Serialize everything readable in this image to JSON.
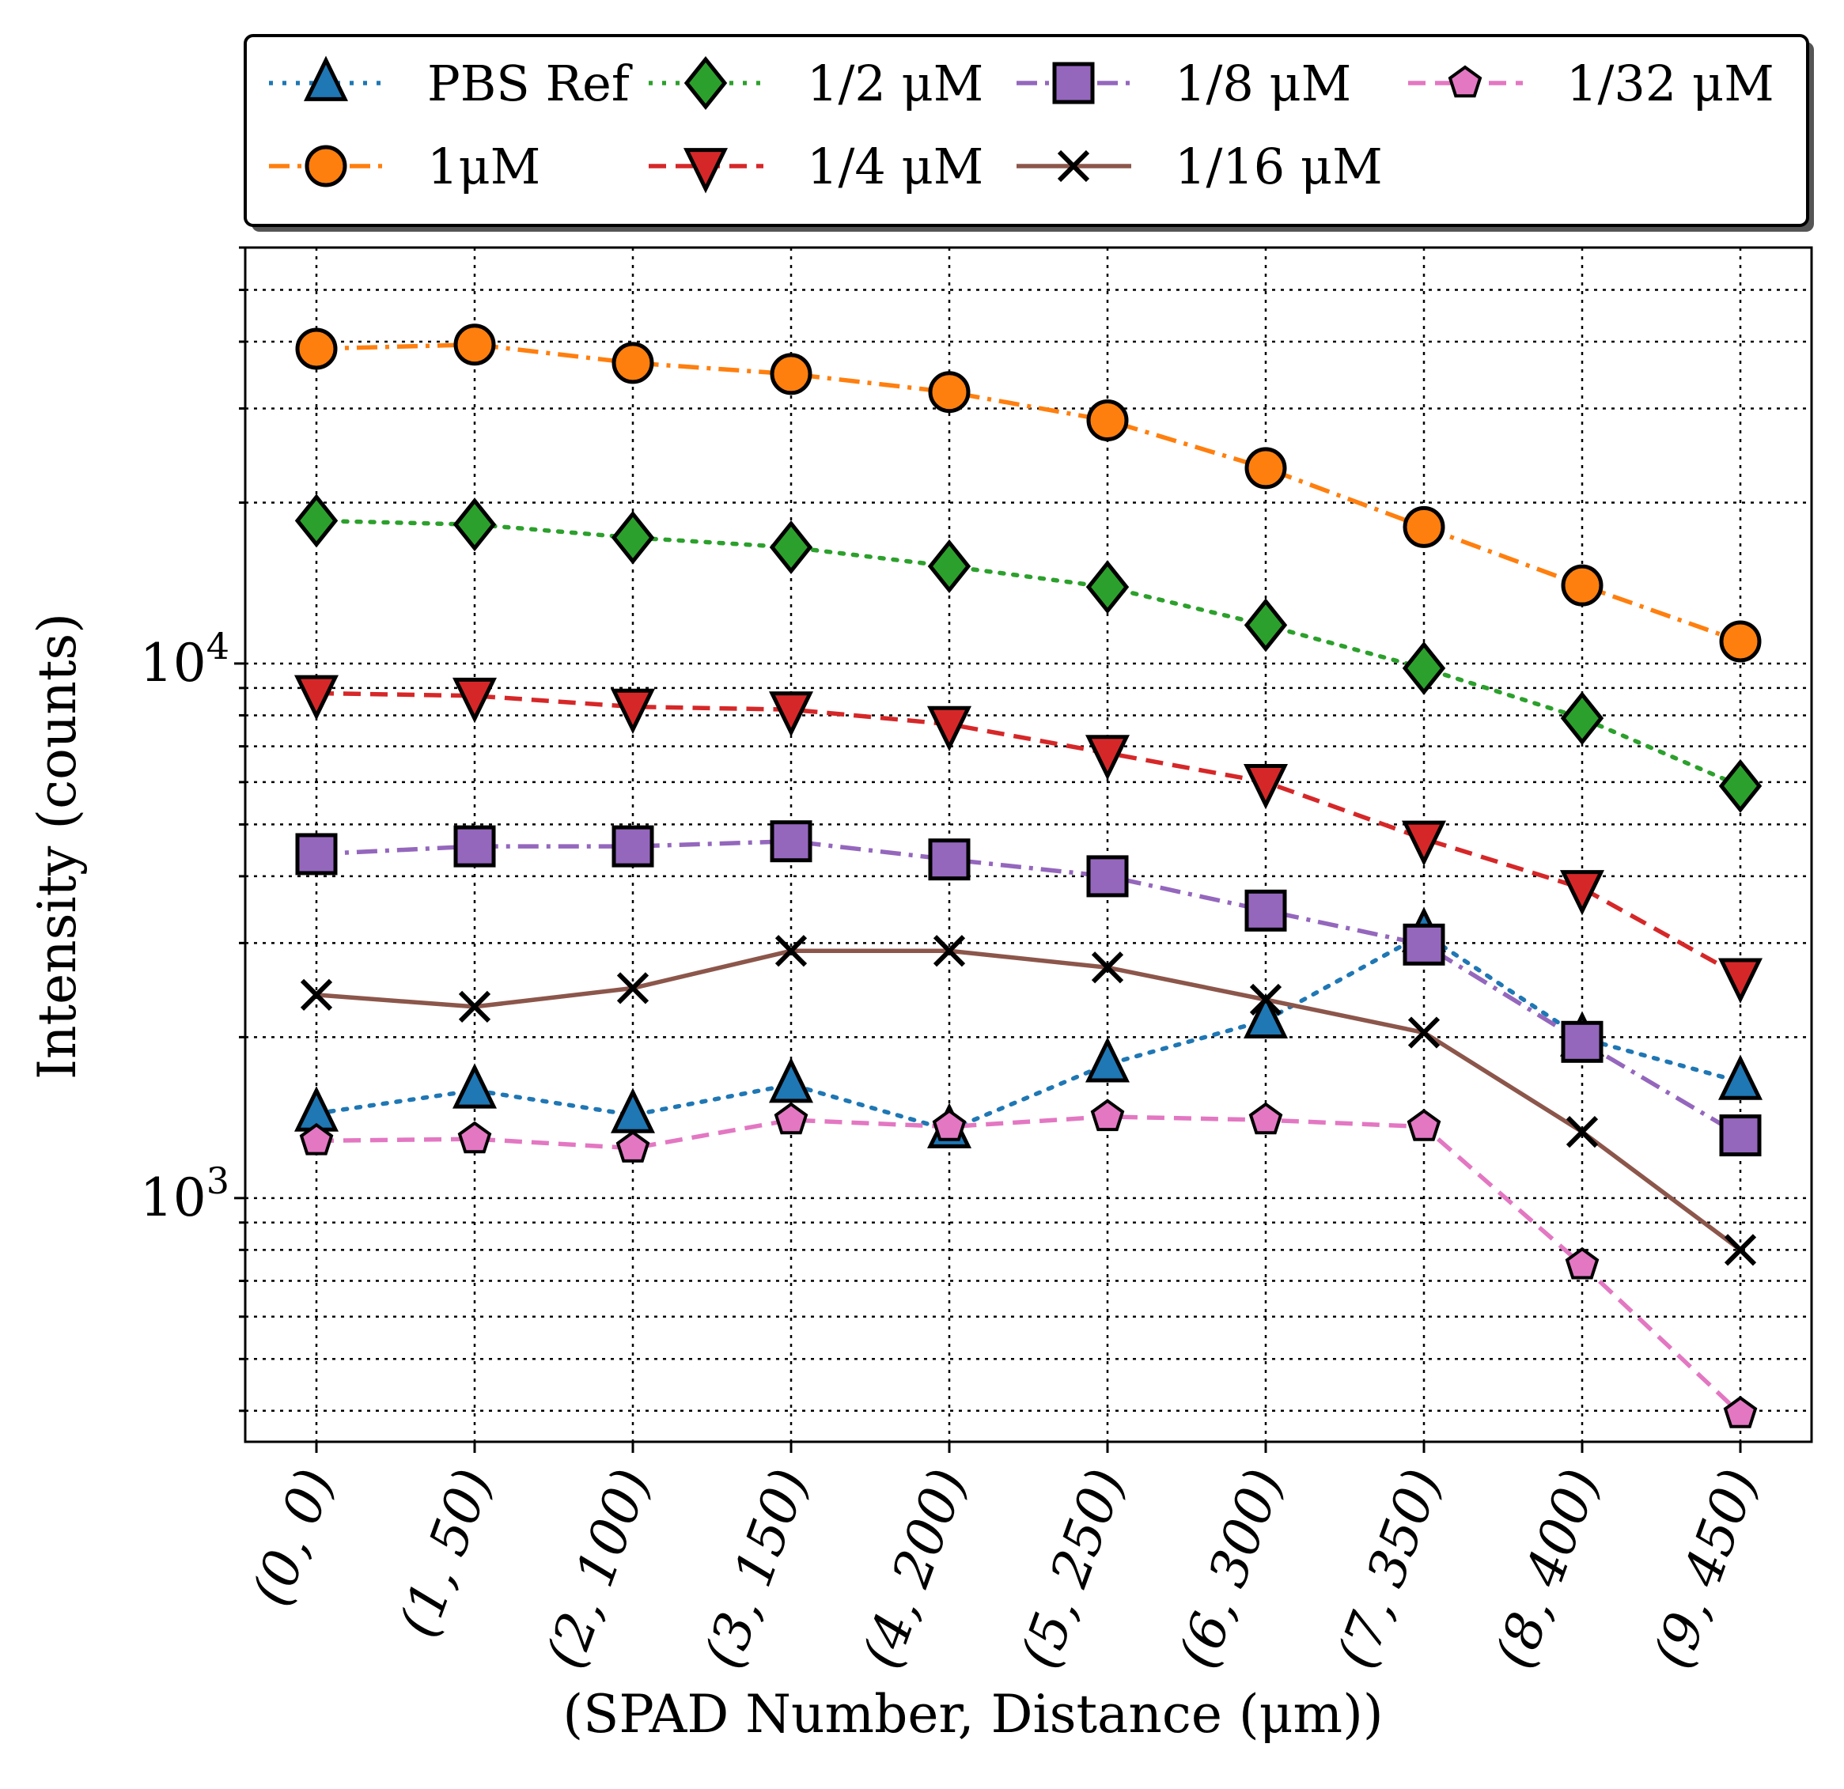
{
  "chart_data": {
    "type": "line",
    "title": "",
    "xlabel": "(SPAD Number,  Distance (μm))",
    "ylabel": "Intensity (counts)",
    "yscale": "log",
    "ylim": [
      350,
      60000
    ],
    "grid": true,
    "legend_position": "top, above plot",
    "categories": [
      "(0, 0)",
      "(1, 50)",
      "(2, 100)",
      "(3, 150)",
      "(4, 200)",
      "(5, 250)",
      "(6, 300)",
      "(7, 350)",
      "(8, 400)",
      "(9, 450)"
    ],
    "y_major_ticks": [
      {
        "value": 1000,
        "base": "10",
        "exp": "3"
      },
      {
        "value": 10000,
        "base": "10",
        "exp": "4"
      }
    ],
    "series": [
      {
        "name": "PBS Ref",
        "color": "#1f77b4",
        "marker": "triangle-up",
        "linestyle": "dotted",
        "values": [
          1440,
          1590,
          1430,
          1630,
          1340,
          1780,
          2150,
          3120,
          1990,
          1650
        ]
      },
      {
        "name": "1μM",
        "color": "#ff7f0e",
        "marker": "circle",
        "linestyle": "dashdot",
        "values": [
          38800,
          39500,
          36500,
          34800,
          32200,
          28500,
          23200,
          18000,
          14000,
          11000
        ]
      },
      {
        "name": "1/2 μM",
        "color": "#2ca02c",
        "marker": "diamond",
        "linestyle": "dotted",
        "values": [
          18500,
          18200,
          17200,
          16500,
          15200,
          13900,
          11800,
          9800,
          7900,
          5900
        ]
      },
      {
        "name": "1/4 μM",
        "color": "#d62728",
        "marker": "triangle-down",
        "linestyle": "dashed",
        "values": [
          8800,
          8700,
          8300,
          8200,
          7700,
          6800,
          6000,
          4700,
          3800,
          2600
        ]
      },
      {
        "name": "1/8 μM",
        "color": "#9467bd",
        "marker": "square",
        "linestyle": "dashdot",
        "values": [
          4400,
          4550,
          4550,
          4650,
          4300,
          4000,
          3450,
          2980,
          1960,
          1310
        ]
      },
      {
        "name": "1/16 μM",
        "color": "#8c564b",
        "marker": "x",
        "linestyle": "solid",
        "values": [
          2400,
          2280,
          2470,
          2900,
          2900,
          2700,
          2350,
          2040,
          1330,
          800
        ]
      },
      {
        "name": "1/32 μM",
        "color": "#e377c2",
        "marker": "pentagon",
        "linestyle": "dashed",
        "values": [
          1280,
          1290,
          1240,
          1400,
          1360,
          1420,
          1400,
          1360,
          750,
          395
        ]
      }
    ]
  }
}
